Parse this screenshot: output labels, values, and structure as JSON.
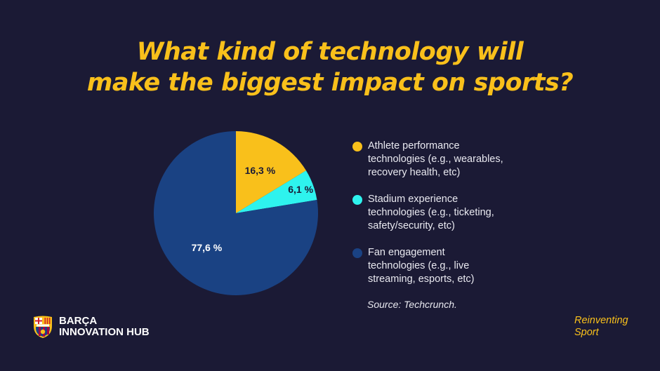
{
  "header": {
    "title_line1": "What kind of technology will",
    "title_line2": "make the biggest impact on sports?"
  },
  "chart_data": {
    "type": "pie",
    "slices": [
      {
        "label": "Athlete performance\ntechnologies (e.g., wearables,\nrecovery health, etc)",
        "value": 16.3,
        "value_label": "16,3 %",
        "color": "#f9c01b"
      },
      {
        "label": "Stadium experience\ntechnologies (e.g., ticketing,\nsafety/security, etc)",
        "value": 6.1,
        "value_label": "6,1 %",
        "color": "#2ef3ee"
      },
      {
        "label": "Fan engagement\ntechnologies (e.g., live\nstreaming, esports, etc)",
        "value": 77.6,
        "value_label": "77,6 %",
        "color": "#1a4283"
      }
    ],
    "legend_position": "right",
    "start": "12 o'clock, clockwise"
  },
  "source": "Source: Techcrunch.",
  "footer": {
    "brand_name": "BARÇA\nINNOVATION HUB",
    "tagline": "Reinventing\nSport"
  },
  "colors": {
    "background": "#1b1a35",
    "accent": "#f9c01b"
  }
}
